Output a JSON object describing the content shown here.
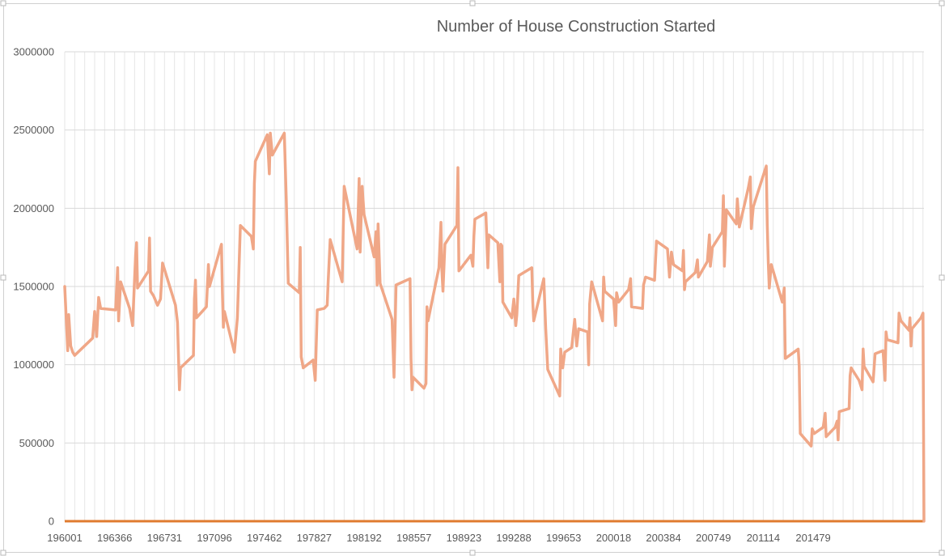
{
  "chart_data": {
    "type": "line",
    "title": "Number of House Construction Started",
    "xlabel": "",
    "ylabel": "",
    "ylim": [
      0,
      3000000
    ],
    "y_ticks": [
      "0",
      "500000",
      "1000000",
      "1500000",
      "2000000",
      "2500000",
      "3000000"
    ],
    "x_tick_labels": [
      "196001",
      "196366",
      "196731",
      "197096",
      "197462",
      "197827",
      "198192",
      "198557",
      "198923",
      "199288",
      "199653",
      "200018",
      "200384",
      "200749",
      "201114",
      "201479"
    ],
    "grid": "vertical and horizontal",
    "legend": "none",
    "colors": {
      "series": "#f0a787",
      "baseline": "#e07b2f",
      "grid": "#e6e6e6",
      "text": "#595959"
    },
    "series": [
      {
        "values": [
          [
            0,
            1500000
          ],
          [
            0.3,
            1090000
          ],
          [
            0.4,
            1320000
          ],
          [
            0.6,
            1120000
          ],
          [
            0.8,
            1080000
          ],
          [
            1.0,
            1060000
          ],
          [
            2.8,
            1170000
          ],
          [
            3.0,
            1340000
          ],
          [
            3.2,
            1180000
          ],
          [
            3.4,
            1430000
          ],
          [
            3.6,
            1360000
          ],
          [
            5.1,
            1350000
          ],
          [
            5.3,
            1620000
          ],
          [
            5.4,
            1280000
          ],
          [
            5.6,
            1530000
          ],
          [
            6.5,
            1360000
          ],
          [
            6.8,
            1250000
          ],
          [
            7.1,
            1700000
          ],
          [
            7.2,
            1780000
          ],
          [
            7.3,
            1490000
          ],
          [
            8.4,
            1600000
          ],
          [
            8.5,
            1810000
          ],
          [
            8.6,
            1470000
          ],
          [
            8.9,
            1440000
          ],
          [
            9.3,
            1380000
          ],
          [
            9.6,
            1420000
          ],
          [
            9.8,
            1650000
          ],
          [
            11.1,
            1380000
          ],
          [
            11.3,
            1270000
          ],
          [
            11.5,
            840000
          ],
          [
            11.6,
            980000
          ],
          [
            12.9,
            1060000
          ],
          [
            13.0,
            1420000
          ],
          [
            13.1,
            1540000
          ],
          [
            13.2,
            1300000
          ],
          [
            14.2,
            1370000
          ],
          [
            14.4,
            1640000
          ],
          [
            14.5,
            1500000
          ],
          [
            15.7,
            1770000
          ],
          [
            15.8,
            1460000
          ],
          [
            15.9,
            1240000
          ],
          [
            16.0,
            1340000
          ],
          [
            16.5,
            1210000
          ],
          [
            17.0,
            1080000
          ],
          [
            17.3,
            1300000
          ],
          [
            17.6,
            1890000
          ],
          [
            18.7,
            1820000
          ],
          [
            18.9,
            1740000
          ],
          [
            19.0,
            2160000
          ],
          [
            19.1,
            2300000
          ],
          [
            20.3,
            2470000
          ],
          [
            20.5,
            2220000
          ],
          [
            20.6,
            2480000
          ],
          [
            20.8,
            2340000
          ],
          [
            22.0,
            2480000
          ],
          [
            22.2,
            2060000
          ],
          [
            22.4,
            1520000
          ],
          [
            23.5,
            1460000
          ],
          [
            23.6,
            1750000
          ],
          [
            23.7,
            1050000
          ],
          [
            23.9,
            980000
          ],
          [
            24.9,
            1030000
          ],
          [
            25.1,
            900000
          ],
          [
            25.3,
            1350000
          ],
          [
            26.0,
            1360000
          ],
          [
            26.3,
            1380000
          ],
          [
            26.4,
            1530000
          ],
          [
            26.6,
            1800000
          ],
          [
            27.8,
            1530000
          ],
          [
            28.0,
            2140000
          ],
          [
            28.2,
            2080000
          ],
          [
            29.3,
            1740000
          ],
          [
            29.5,
            2190000
          ],
          [
            29.6,
            1720000
          ],
          [
            29.8,
            2140000
          ],
          [
            30.0,
            1960000
          ],
          [
            31.0,
            1690000
          ],
          [
            31.2,
            1850000
          ],
          [
            31.3,
            1510000
          ],
          [
            31.4,
            1900000
          ],
          [
            31.6,
            1520000
          ],
          [
            32.8,
            1290000
          ],
          [
            33.0,
            920000
          ],
          [
            33.2,
            1510000
          ],
          [
            34.6,
            1550000
          ],
          [
            34.7,
            1040000
          ],
          [
            34.8,
            840000
          ],
          [
            34.9,
            920000
          ],
          [
            36.0,
            850000
          ],
          [
            36.2,
            880000
          ],
          [
            36.3,
            1370000
          ],
          [
            36.4,
            1280000
          ],
          [
            37.5,
            1620000
          ],
          [
            37.7,
            1910000
          ],
          [
            37.8,
            1600000
          ],
          [
            37.9,
            1470000
          ],
          [
            38.1,
            1770000
          ],
          [
            39.3,
            1890000
          ],
          [
            39.4,
            2260000
          ],
          [
            39.5,
            1600000
          ],
          [
            40.7,
            1700000
          ],
          [
            40.9,
            1630000
          ],
          [
            41.0,
            1820000
          ],
          [
            41.1,
            1930000
          ],
          [
            42.2,
            1970000
          ],
          [
            42.4,
            1620000
          ],
          [
            42.5,
            1830000
          ],
          [
            43.4,
            1780000
          ],
          [
            43.6,
            1530000
          ],
          [
            43.7,
            1770000
          ],
          [
            43.8,
            1760000
          ],
          [
            43.9,
            1400000
          ],
          [
            44.8,
            1300000
          ],
          [
            45.0,
            1420000
          ],
          [
            45.2,
            1250000
          ],
          [
            45.3,
            1320000
          ],
          [
            45.5,
            1570000
          ],
          [
            46.8,
            1620000
          ],
          [
            46.9,
            1400000
          ],
          [
            47.0,
            1280000
          ],
          [
            48.0,
            1550000
          ],
          [
            48.2,
            1230000
          ],
          [
            48.4,
            970000
          ],
          [
            49.6,
            800000
          ],
          [
            49.7,
            1100000
          ],
          [
            49.9,
            980000
          ],
          [
            50.1,
            1080000
          ],
          [
            50.8,
            1110000
          ],
          [
            51.1,
            1290000
          ],
          [
            51.3,
            1120000
          ],
          [
            51.5,
            1230000
          ],
          [
            52.4,
            1210000
          ],
          [
            52.5,
            1000000
          ],
          [
            52.6,
            1390000
          ],
          [
            52.8,
            1530000
          ],
          [
            53.9,
            1280000
          ],
          [
            54.0,
            1560000
          ],
          [
            54.1,
            1470000
          ],
          [
            55.0,
            1420000
          ],
          [
            55.2,
            1250000
          ],
          [
            55.3,
            1460000
          ],
          [
            55.5,
            1400000
          ],
          [
            56.5,
            1480000
          ],
          [
            56.7,
            1550000
          ],
          [
            56.8,
            1370000
          ],
          [
            57.9,
            1360000
          ],
          [
            58.0,
            1510000
          ],
          [
            58.2,
            1560000
          ],
          [
            59.1,
            1540000
          ],
          [
            59.3,
            1790000
          ],
          [
            60.4,
            1740000
          ],
          [
            60.6,
            1560000
          ],
          [
            60.8,
            1720000
          ],
          [
            61.0,
            1640000
          ],
          [
            61.9,
            1600000
          ],
          [
            62.0,
            1730000
          ],
          [
            62.1,
            1480000
          ],
          [
            62.2,
            1530000
          ],
          [
            63.2,
            1590000
          ],
          [
            63.4,
            1670000
          ],
          [
            63.5,
            1560000
          ],
          [
            64.4,
            1660000
          ],
          [
            64.6,
            1830000
          ],
          [
            64.7,
            1630000
          ],
          [
            64.9,
            1750000
          ],
          [
            65.9,
            1850000
          ],
          [
            66.0,
            2080000
          ],
          [
            66.1,
            1630000
          ],
          [
            66.3,
            1990000
          ],
          [
            67.3,
            1900000
          ],
          [
            67.4,
            2060000
          ],
          [
            67.6,
            1880000
          ],
          [
            68.5,
            2130000
          ],
          [
            68.7,
            2200000
          ],
          [
            68.8,
            1870000
          ],
          [
            69.0,
            2010000
          ],
          [
            70.3,
            2270000
          ],
          [
            70.4,
            1900000
          ],
          [
            70.5,
            1650000
          ],
          [
            70.6,
            1490000
          ],
          [
            70.8,
            1640000
          ],
          [
            71.9,
            1400000
          ],
          [
            72.1,
            1490000
          ],
          [
            72.2,
            1040000
          ],
          [
            73.5,
            1100000
          ],
          [
            73.6,
            990000
          ],
          [
            73.7,
            560000
          ],
          [
            74.8,
            480000
          ],
          [
            74.9,
            590000
          ],
          [
            75.1,
            560000
          ],
          [
            76.0,
            600000
          ],
          [
            76.2,
            690000
          ],
          [
            76.3,
            540000
          ],
          [
            77.2,
            600000
          ],
          [
            77.4,
            640000
          ],
          [
            77.5,
            520000
          ],
          [
            77.6,
            700000
          ],
          [
            78.6,
            720000
          ],
          [
            78.7,
            930000
          ],
          [
            78.8,
            980000
          ],
          [
            79.6,
            900000
          ],
          [
            79.9,
            840000
          ],
          [
            80.0,
            1100000
          ],
          [
            80.1,
            990000
          ],
          [
            81.0,
            890000
          ],
          [
            81.2,
            1070000
          ],
          [
            82.0,
            1090000
          ],
          [
            82.2,
            900000
          ],
          [
            82.3,
            1210000
          ],
          [
            82.4,
            1160000
          ],
          [
            83.5,
            1140000
          ],
          [
            83.6,
            1330000
          ],
          [
            83.8,
            1280000
          ],
          [
            84.6,
            1220000
          ],
          [
            84.7,
            1300000
          ],
          [
            84.8,
            1120000
          ],
          [
            84.9,
            1230000
          ],
          [
            85.8,
            1300000
          ],
          [
            86.0,
            1330000
          ],
          [
            86.1,
            0
          ]
        ]
      }
    ]
  }
}
